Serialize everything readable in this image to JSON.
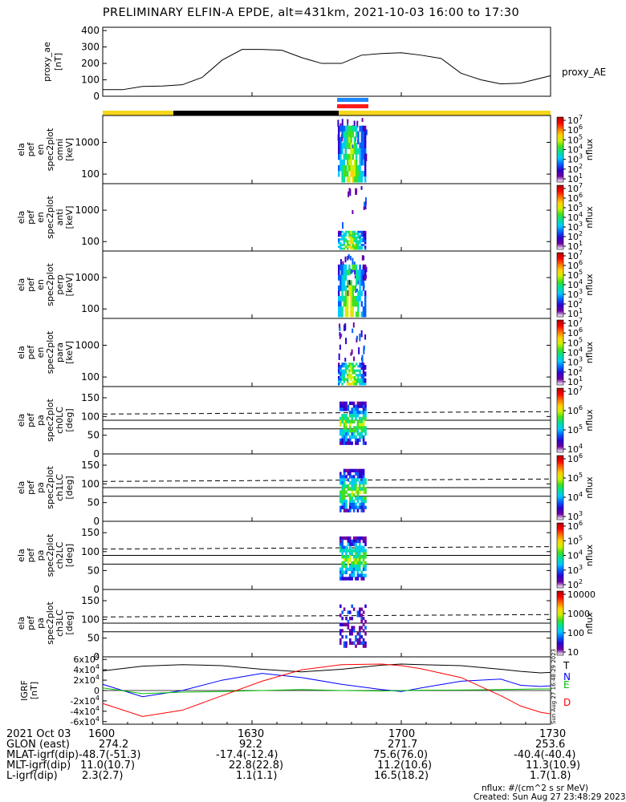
{
  "title": "PRELIMINARY ELFIN-A EPDE, alt=431km, 2021-10-03 16:00 to 17:30",
  "colors": {
    "ae_line": "#000000",
    "yellow": "#f5d619",
    "black": "#000000",
    "blue_bar": "#1e88ff",
    "red_bar": "#ff1a1a",
    "grf_T": "#000000",
    "grf_N": "#0000ff",
    "grf_E": "#00c000",
    "grf_D": "#ff0000"
  },
  "colorbar_gradient": [
    "#ffffff",
    "#7000a0",
    "#3000d0",
    "#0060ff",
    "#00c8ff",
    "#00e0a0",
    "#40e020",
    "#d0f000",
    "#ffd000",
    "#ff7000",
    "#ff0000",
    "#b00000"
  ],
  "chart_data": [
    {
      "type": "line",
      "name": "proxy_ae",
      "ylabel": "proxy_ae [nT]",
      "ylabel_lines": [
        "proxy_ae",
        "[nT]"
      ],
      "yticks": [
        "400",
        "300",
        "200",
        "100",
        "0"
      ],
      "ylim": [
        0,
        420
      ],
      "legend": "proxy_AE",
      "x_minutes": [
        0,
        4,
        8,
        12,
        16,
        20,
        24,
        28,
        32,
        36,
        40,
        44,
        48,
        52,
        56,
        60,
        64,
        68,
        72,
        74,
        76,
        80,
        84,
        88,
        90
      ],
      "values": [
        40,
        40,
        60,
        62,
        70,
        115,
        220,
        285,
        285,
        280,
        235,
        200,
        200,
        250,
        260,
        265,
        250,
        230,
        140,
        120,
        100,
        75,
        80,
        110,
        125
      ]
    },
    {
      "type": "heatmap",
      "name": "omni",
      "ylabel_lines": [
        "ela",
        "pef",
        "en",
        "spec2plot",
        "omni",
        "[keV]"
      ],
      "yticks": [
        "1000",
        "100"
      ],
      "yscale": "log",
      "ylim_keV": [
        50,
        7000
      ],
      "colorbar_ticks": [
        "10^7",
        "10^6",
        "10^5",
        "10^4",
        "10^3",
        "10^2",
        "10^1"
      ],
      "colorbar_label": "nflux"
    },
    {
      "type": "heatmap",
      "name": "anti",
      "ylabel_lines": [
        "ela",
        "pef",
        "en",
        "spec2plot",
        "anti",
        "[keV]"
      ],
      "yticks": [
        "1000",
        "100"
      ],
      "yscale": "log",
      "ylim_keV": [
        50,
        7000
      ],
      "colorbar_ticks": [
        "10^7",
        "10^6",
        "10^5",
        "10^4",
        "10^3",
        "10^2",
        "10^1"
      ],
      "colorbar_label": "nflux"
    },
    {
      "type": "heatmap",
      "name": "perp",
      "ylabel_lines": [
        "ela",
        "pef",
        "en",
        "spec2plot",
        "perp",
        "[keV]"
      ],
      "yticks": [
        "1000",
        "100"
      ],
      "yscale": "log",
      "ylim_keV": [
        50,
        7000
      ],
      "colorbar_ticks": [
        "10^7",
        "10^6",
        "10^5",
        "10^4",
        "10^3",
        "10^2",
        "10^1"
      ],
      "colorbar_label": "nflux"
    },
    {
      "type": "heatmap",
      "name": "para",
      "ylabel_lines": [
        "ela",
        "pef",
        "en",
        "spec2plot",
        "para",
        "[keV]"
      ],
      "yticks": [
        "1000",
        "100"
      ],
      "yscale": "log",
      "ylim_keV": [
        50,
        7000
      ],
      "colorbar_ticks": [
        "10^7",
        "10^6",
        "10^5",
        "10^4",
        "10^3",
        "10^2",
        "10^1"
      ],
      "colorbar_label": "nflux"
    },
    {
      "type": "heatmap",
      "name": "ch0LC",
      "ylabel_lines": [
        "ela",
        "pef",
        "pa",
        "spec2plot",
        "ch0LC",
        "[deg]"
      ],
      "yticks": [
        "150",
        "100",
        "50",
        "0"
      ],
      "ylim_deg": [
        0,
        180
      ],
      "colorbar_ticks": [
        "10^7",
        "10^6",
        "10^5",
        "10^4"
      ],
      "colorbar_label": "nflux"
    },
    {
      "type": "heatmap",
      "name": "ch1LC",
      "ylabel_lines": [
        "ela",
        "pef",
        "pa",
        "spec2plot",
        "ch1LC",
        "[deg]"
      ],
      "yticks": [
        "150",
        "100",
        "50",
        "0"
      ],
      "ylim_deg": [
        0,
        180
      ],
      "colorbar_ticks": [
        "10^6",
        "10^5",
        "10^4",
        "10^3"
      ],
      "colorbar_label": "nflux"
    },
    {
      "type": "heatmap",
      "name": "ch2LC",
      "ylabel_lines": [
        "ela",
        "pef",
        "pa",
        "spec2plot",
        "ch2LC",
        "[deg]"
      ],
      "yticks": [
        "150",
        "100",
        "50",
        "0"
      ],
      "ylim_deg": [
        0,
        180
      ],
      "colorbar_ticks": [
        "10^6",
        "10^5",
        "10^4",
        "10^3",
        "10^2"
      ],
      "colorbar_label": "nflux"
    },
    {
      "type": "heatmap",
      "name": "ch3LC",
      "ylabel_lines": [
        "ela",
        "pef",
        "pa",
        "spec2plot",
        "ch3LC",
        "[deg]"
      ],
      "yticks": [
        "150",
        "100",
        "50",
        "0"
      ],
      "ylim_deg": [
        0,
        180
      ],
      "colorbar_ticks": [
        "10000",
        "1000",
        "100",
        "10"
      ],
      "colorbar_label": "nflux"
    },
    {
      "type": "line",
      "name": "IGRF",
      "ylabel_lines": [
        "IGRF",
        "[nT]"
      ],
      "yticks": [
        "6x10^4",
        "4x10^4",
        "2x10^4",
        "0",
        "-2x10^4",
        "-4x10^4",
        "-6x10^4"
      ],
      "ylim": [
        -65000,
        65000
      ],
      "legend": [
        "T",
        "N",
        "E",
        "D"
      ],
      "x_minutes": [
        0,
        8,
        16,
        24,
        32,
        40,
        48,
        56,
        60,
        64,
        72,
        80,
        84,
        88,
        90
      ],
      "series": [
        {
          "name": "T",
          "values": [
            38000,
            47000,
            50000,
            48000,
            41000,
            36000,
            41000,
            49000,
            51000,
            50000,
            48000,
            41000,
            37000,
            34000,
            35000
          ]
        },
        {
          "name": "N",
          "values": [
            12000,
            -12000,
            0,
            20000,
            33000,
            25000,
            12000,
            2000,
            -2000,
            5000,
            18000,
            22000,
            10000,
            8000,
            9000
          ]
        },
        {
          "name": "E",
          "values": [
            5000,
            -6000,
            -3000,
            -2000,
            0,
            2000,
            0,
            -1000,
            0,
            500,
            1000,
            2000,
            2500,
            3000,
            3000
          ]
        },
        {
          "name": "D",
          "values": [
            -25000,
            -50000,
            -38000,
            -10000,
            18000,
            40000,
            50000,
            51000,
            48000,
            42000,
            25000,
            -10000,
            -30000,
            -42000,
            -45000
          ]
        }
      ]
    }
  ],
  "timestamp_vertical": "Sun Aug 27 16:48:29 2023",
  "footer": {
    "rows": [
      {
        "label": "2021 Oct 03",
        "values": [
          "1600",
          "1630",
          "1700",
          "1730"
        ]
      },
      {
        "label": "GLON (east)",
        "values": [
          "274.2",
          "92.2",
          "271.7",
          "253.6"
        ]
      },
      {
        "label": "MLAT-igrf(dip)",
        "values": [
          "-48.7(-51.3)",
          "-17.4(-12.4)",
          "75.6(76.0)",
          "-40.4(-40.4)"
        ]
      },
      {
        "label": "MLT-igrf(dip)",
        "values": [
          "11.0(10.7)",
          "22.8(22.8)",
          "11.2(10.6)",
          "11.3(10.9)"
        ]
      },
      {
        "label": "L-igrf(dip)",
        "values": [
          "2.3(2.7)",
          "1.1(1.1)",
          "16.5(18.2)",
          "1.7(1.8)"
        ]
      }
    ],
    "note_units": "nflux: #/(cm^2 s sr MeV)",
    "note_created": "Created: Sun Aug 27 23:48:29 2023"
  }
}
